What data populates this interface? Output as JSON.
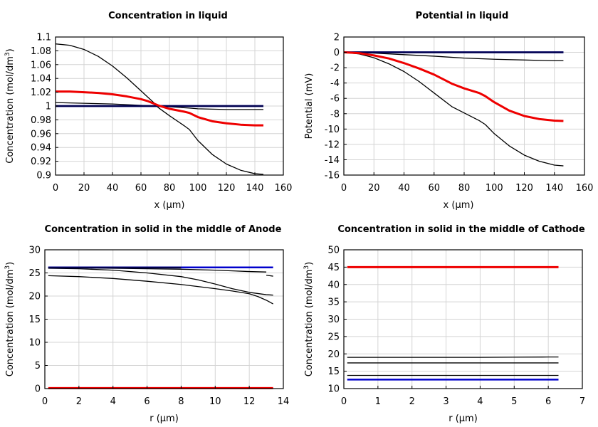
{
  "colors": {
    "black": "#000000",
    "blue": "#0000cc",
    "navy": "#00004d",
    "red": "#ee0000"
  },
  "chart_data": [
    {
      "type": "line",
      "title": "Concentration in liquid",
      "xlabel": "x (µm)",
      "ylabel": "Concentration (mol/dm",
      "ylabel_sup": "3",
      "ylabel_tail": ")",
      "xlim": [
        0,
        160
      ],
      "ylim": [
        0.9,
        1.1
      ],
      "xticks": [
        0,
        20,
        40,
        60,
        80,
        100,
        120,
        140,
        160
      ],
      "yticks": [
        0.9,
        0.92,
        0.94,
        0.96,
        0.98,
        1,
        1.02,
        1.04,
        1.06,
        1.08,
        1.1
      ],
      "series": [
        {
          "color": "#000000",
          "width": 1.3,
          "x": [
            0,
            10,
            20,
            30,
            40,
            50,
            60,
            70,
            72,
            80,
            90,
            94,
            100,
            110,
            120,
            130,
            140,
            146
          ],
          "y": [
            1.09,
            1.088,
            1.082,
            1.072,
            1.058,
            1.041,
            1.022,
            1.003,
            0.998,
            0.986,
            0.972,
            0.966,
            0.95,
            0.93,
            0.916,
            0.907,
            0.902,
            0.901
          ]
        },
        {
          "color": "#000000",
          "width": 1.3,
          "x": [
            0,
            20,
            40,
            60,
            72,
            80,
            94,
            100,
            120,
            146
          ],
          "y": [
            1.005,
            1.004,
            1.003,
            1.001,
            1.0,
            0.999,
            0.997,
            0.996,
            0.995,
            0.995
          ]
        },
        {
          "color": "#0000cc",
          "width": 2.5,
          "x": [
            0,
            146
          ],
          "y": [
            1.0,
            1.0
          ]
        },
        {
          "color": "#00004d",
          "width": 2.5,
          "x": [
            0,
            40,
            72,
            100,
            146
          ],
          "y": [
            1.0,
            1.0,
            1.0,
            1.0,
            1.0
          ]
        },
        {
          "color": "#ee0000",
          "width": 3,
          "x": [
            0,
            10,
            20,
            30,
            40,
            50,
            60,
            65,
            72,
            80,
            90,
            94,
            100,
            110,
            120,
            130,
            140,
            146
          ],
          "y": [
            1.021,
            1.021,
            1.02,
            1.019,
            1.017,
            1.014,
            1.01,
            1.007,
            1.001,
            0.996,
            0.992,
            0.99,
            0.984,
            0.978,
            0.975,
            0.973,
            0.972,
            0.972
          ]
        }
      ]
    },
    {
      "type": "line",
      "title": "Potential in liquid",
      "xlabel": "x (µm)",
      "ylabel": "Potential (mV)",
      "ylabel_sup": "",
      "ylabel_tail": "",
      "xlim": [
        0,
        160
      ],
      "ylim": [
        -16,
        2
      ],
      "xticks": [
        0,
        20,
        40,
        60,
        80,
        100,
        120,
        140,
        160
      ],
      "yticks": [
        -16,
        -14,
        -12,
        -10,
        -8,
        -6,
        -4,
        -2,
        0,
        2
      ],
      "series": [
        {
          "color": "#000000",
          "width": 1.3,
          "x": [
            0,
            10,
            20,
            30,
            40,
            50,
            60,
            70,
            72,
            80,
            90,
            94,
            100,
            110,
            120,
            130,
            140,
            146
          ],
          "y": [
            0,
            -0.2,
            -0.7,
            -1.5,
            -2.5,
            -3.8,
            -5.3,
            -6.8,
            -7.1,
            -7.9,
            -8.9,
            -9.4,
            -10.6,
            -12.2,
            -13.4,
            -14.2,
            -14.7,
            -14.8
          ]
        },
        {
          "color": "#000000",
          "width": 1.3,
          "x": [
            0,
            20,
            40,
            60,
            72,
            80,
            94,
            100,
            120,
            140,
            146
          ],
          "y": [
            0,
            -0.1,
            -0.3,
            -0.5,
            -0.65,
            -0.75,
            -0.85,
            -0.9,
            -1.0,
            -1.1,
            -1.1
          ]
        },
        {
          "color": "#0000cc",
          "width": 2.5,
          "x": [
            0,
            146
          ],
          "y": [
            0,
            0
          ]
        },
        {
          "color": "#00004d",
          "width": 2.5,
          "x": [
            0,
            146
          ],
          "y": [
            0,
            0
          ]
        },
        {
          "color": "#ee0000",
          "width": 3,
          "x": [
            0,
            10,
            20,
            30,
            40,
            50,
            60,
            70,
            72,
            80,
            90,
            94,
            100,
            110,
            120,
            130,
            140,
            146
          ],
          "y": [
            0,
            -0.1,
            -0.4,
            -0.8,
            -1.4,
            -2.1,
            -2.9,
            -3.9,
            -4.1,
            -4.7,
            -5.3,
            -5.7,
            -6.5,
            -7.6,
            -8.3,
            -8.7,
            -8.9,
            -8.95
          ]
        }
      ]
    },
    {
      "type": "line",
      "title": "Concentration in solid in the middle of Anode",
      "xlabel": "r (µm)",
      "ylabel": "Concentration (mol/dm",
      "ylabel_sup": "3",
      "ylabel_tail": ")",
      "xlim": [
        0,
        14
      ],
      "ylim": [
        0,
        30
      ],
      "xticks": [
        0,
        2,
        4,
        6,
        8,
        10,
        12,
        14
      ],
      "yticks": [
        0,
        5,
        10,
        15,
        20,
        25,
        30
      ],
      "series": [
        {
          "color": "#000000",
          "width": 1.3,
          "x": [
            0.2,
            2,
            4,
            6,
            8,
            10,
            12,
            13
          ],
          "y": [
            26.2,
            26.1,
            26.0,
            25.9,
            25.8,
            25.6,
            25.3,
            25.2
          ]
        },
        {
          "color": "#000000",
          "width": 1.3,
          "x": [
            0.2,
            2,
            4,
            6,
            8,
            9,
            10,
            11,
            12,
            13,
            13.4
          ],
          "y": [
            26.0,
            25.9,
            25.6,
            25.0,
            24.2,
            23.5,
            22.6,
            21.6,
            20.8,
            20.3,
            20.2
          ]
        },
        {
          "color": "#000000",
          "width": 1.3,
          "x": [
            0.2,
            2,
            4,
            6,
            8,
            10,
            11,
            12,
            12.5,
            13,
            13.4
          ],
          "y": [
            24.4,
            24.2,
            23.8,
            23.2,
            22.5,
            21.6,
            21.1,
            20.5,
            19.9,
            19.1,
            18.3
          ]
        },
        {
          "color": "#000000",
          "width": 1.3,
          "x": [
            13.0,
            13.4
          ],
          "y": [
            24.5,
            24.3
          ]
        },
        {
          "color": "#0000cc",
          "width": 2.5,
          "x": [
            0.2,
            13.4
          ],
          "y": [
            26.2,
            26.2
          ]
        },
        {
          "color": "#00004d",
          "width": 2.5,
          "x": [
            0.2,
            8
          ],
          "y": [
            26.15,
            26.15
          ]
        },
        {
          "color": "#ee0000",
          "width": 3,
          "x": [
            0.2,
            13.4
          ],
          "y": [
            0.1,
            0.1
          ]
        }
      ]
    },
    {
      "type": "line",
      "title": "Concentration in solid in the middle of Cathode",
      "xlabel": "r (µm)",
      "ylabel": "Concentration (mol/dm",
      "ylabel_sup": "3",
      "ylabel_tail": ")",
      "xlim": [
        0,
        7
      ],
      "ylim": [
        10,
        50
      ],
      "xticks": [
        0,
        1,
        2,
        3,
        4,
        5,
        6,
        7
      ],
      "yticks": [
        10,
        15,
        20,
        25,
        30,
        35,
        40,
        45,
        50
      ],
      "series": [
        {
          "color": "#000000",
          "width": 1.3,
          "x": [
            0.1,
            1,
            2,
            3,
            4,
            5,
            6,
            6.3
          ],
          "y": [
            19.0,
            19.0,
            19.0,
            19.0,
            19.0,
            19.05,
            19.1,
            19.1
          ]
        },
        {
          "color": "#000000",
          "width": 1.3,
          "x": [
            0.1,
            6.3
          ],
          "y": [
            17.4,
            17.4
          ]
        },
        {
          "color": "#000000",
          "width": 1.3,
          "x": [
            0.1,
            6.3
          ],
          "y": [
            13.8,
            13.8
          ]
        },
        {
          "color": "#0000cc",
          "width": 2.5,
          "x": [
            0.1,
            6.3
          ],
          "y": [
            12.6,
            12.6
          ]
        },
        {
          "color": "#ee0000",
          "width": 3,
          "x": [
            0.1,
            6.3
          ],
          "y": [
            45.0,
            45.0
          ]
        }
      ]
    }
  ]
}
